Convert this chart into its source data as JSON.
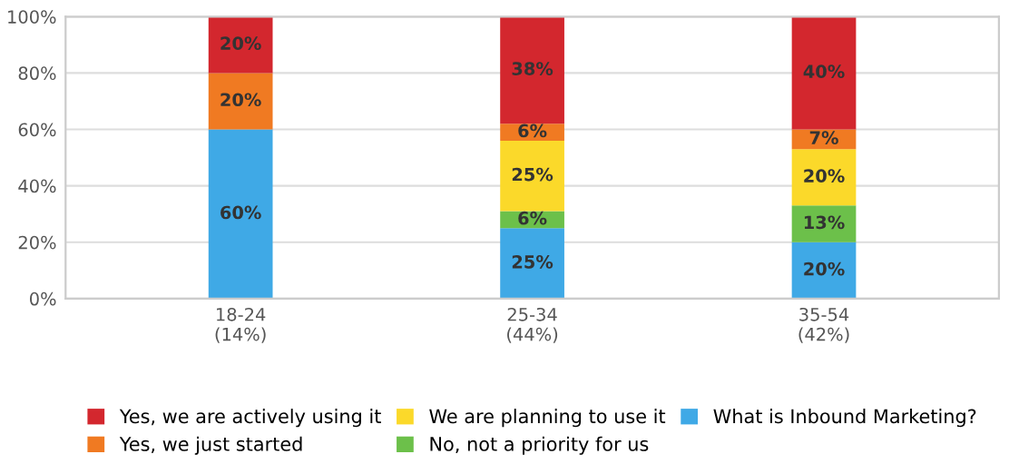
{
  "chart_data": {
    "type": "bar",
    "stacked": true,
    "categories": [
      "18-24\n(14%)",
      "25-34\n(44%)",
      "35-54\n(42%)"
    ],
    "series": [
      {
        "name": "What is Inbound Marketing?",
        "color": "#3fa9e6",
        "values": [
          60,
          25,
          20
        ],
        "value_labels": [
          "60%",
          "25%",
          "20%"
        ]
      },
      {
        "name": "No, not a priority for us",
        "color": "#6cc04a",
        "values": [
          0,
          6,
          13
        ],
        "value_labels": [
          null,
          "6%",
          "13%"
        ]
      },
      {
        "name": "We are planning to use it",
        "color": "#fbd92a",
        "values": [
          0,
          25,
          20
        ],
        "value_labels": [
          null,
          "25%",
          "20%"
        ]
      },
      {
        "name": "Yes, we just started",
        "color": "#f07a22",
        "values": [
          20,
          6,
          7
        ],
        "value_labels": [
          "20%",
          "6%",
          "7%"
        ]
      },
      {
        "name": "Yes, we are actively using it",
        "color": "#d3272e",
        "values": [
          20,
          38,
          40
        ],
        "value_labels": [
          "20%",
          "38%",
          "40%"
        ]
      }
    ],
    "ylim": [
      0,
      100
    ],
    "yticks": [
      {
        "value": 0,
        "label": "0%"
      },
      {
        "value": 20,
        "label": "20%"
      },
      {
        "value": 40,
        "label": "40%"
      },
      {
        "value": 60,
        "label": "60%"
      },
      {
        "value": 80,
        "label": "80%"
      },
      {
        "value": 100,
        "label": "100%"
      }
    ],
    "grid": "y",
    "legend": "bottom"
  }
}
